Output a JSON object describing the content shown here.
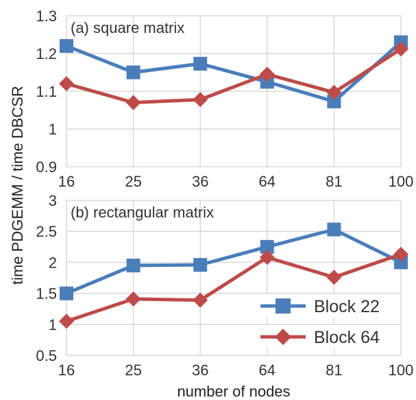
{
  "chart_data": [
    {
      "type": "line",
      "panel": "top",
      "label": "(a) square matrix",
      "categories": [
        "16",
        "25",
        "36",
        "64",
        "81",
        "100"
      ],
      "ylim": [
        0.9,
        1.3
      ],
      "yticks": [
        "0.9",
        "1",
        "1.1",
        "1.2",
        "1.3"
      ],
      "grid": true,
      "series": [
        {
          "name": "Block 22",
          "values": [
            1.22,
            1.15,
            1.173,
            1.125,
            1.073,
            1.23
          ],
          "color": "#4a7ebb",
          "marker": "square"
        },
        {
          "name": "Block 64",
          "values": [
            1.12,
            1.07,
            1.078,
            1.145,
            1.097,
            1.212
          ],
          "color": "#be4b48",
          "marker": "diamond"
        }
      ]
    },
    {
      "type": "line",
      "panel": "bottom",
      "label": "(b) rectangular matrix",
      "categories": [
        "16",
        "25",
        "36",
        "64",
        "81",
        "100"
      ],
      "ylim": [
        0.5,
        3
      ],
      "yticks": [
        "0.5",
        "1",
        "1.5",
        "2",
        "2.5",
        "3"
      ],
      "grid": true,
      "legend_position": "bottom-right",
      "series": [
        {
          "name": "Block 22",
          "values": [
            1.5,
            1.95,
            1.96,
            2.25,
            2.53,
            2.0
          ],
          "color": "#4a7ebb",
          "marker": "square"
        },
        {
          "name": "Block 64",
          "values": [
            1.05,
            1.41,
            1.39,
            2.08,
            1.76,
            2.13
          ],
          "color": "#be4b48",
          "marker": "diamond"
        }
      ]
    }
  ],
  "ylabel": "time PDGEMM / time DBCSR",
  "xlabel": "number of nodes"
}
